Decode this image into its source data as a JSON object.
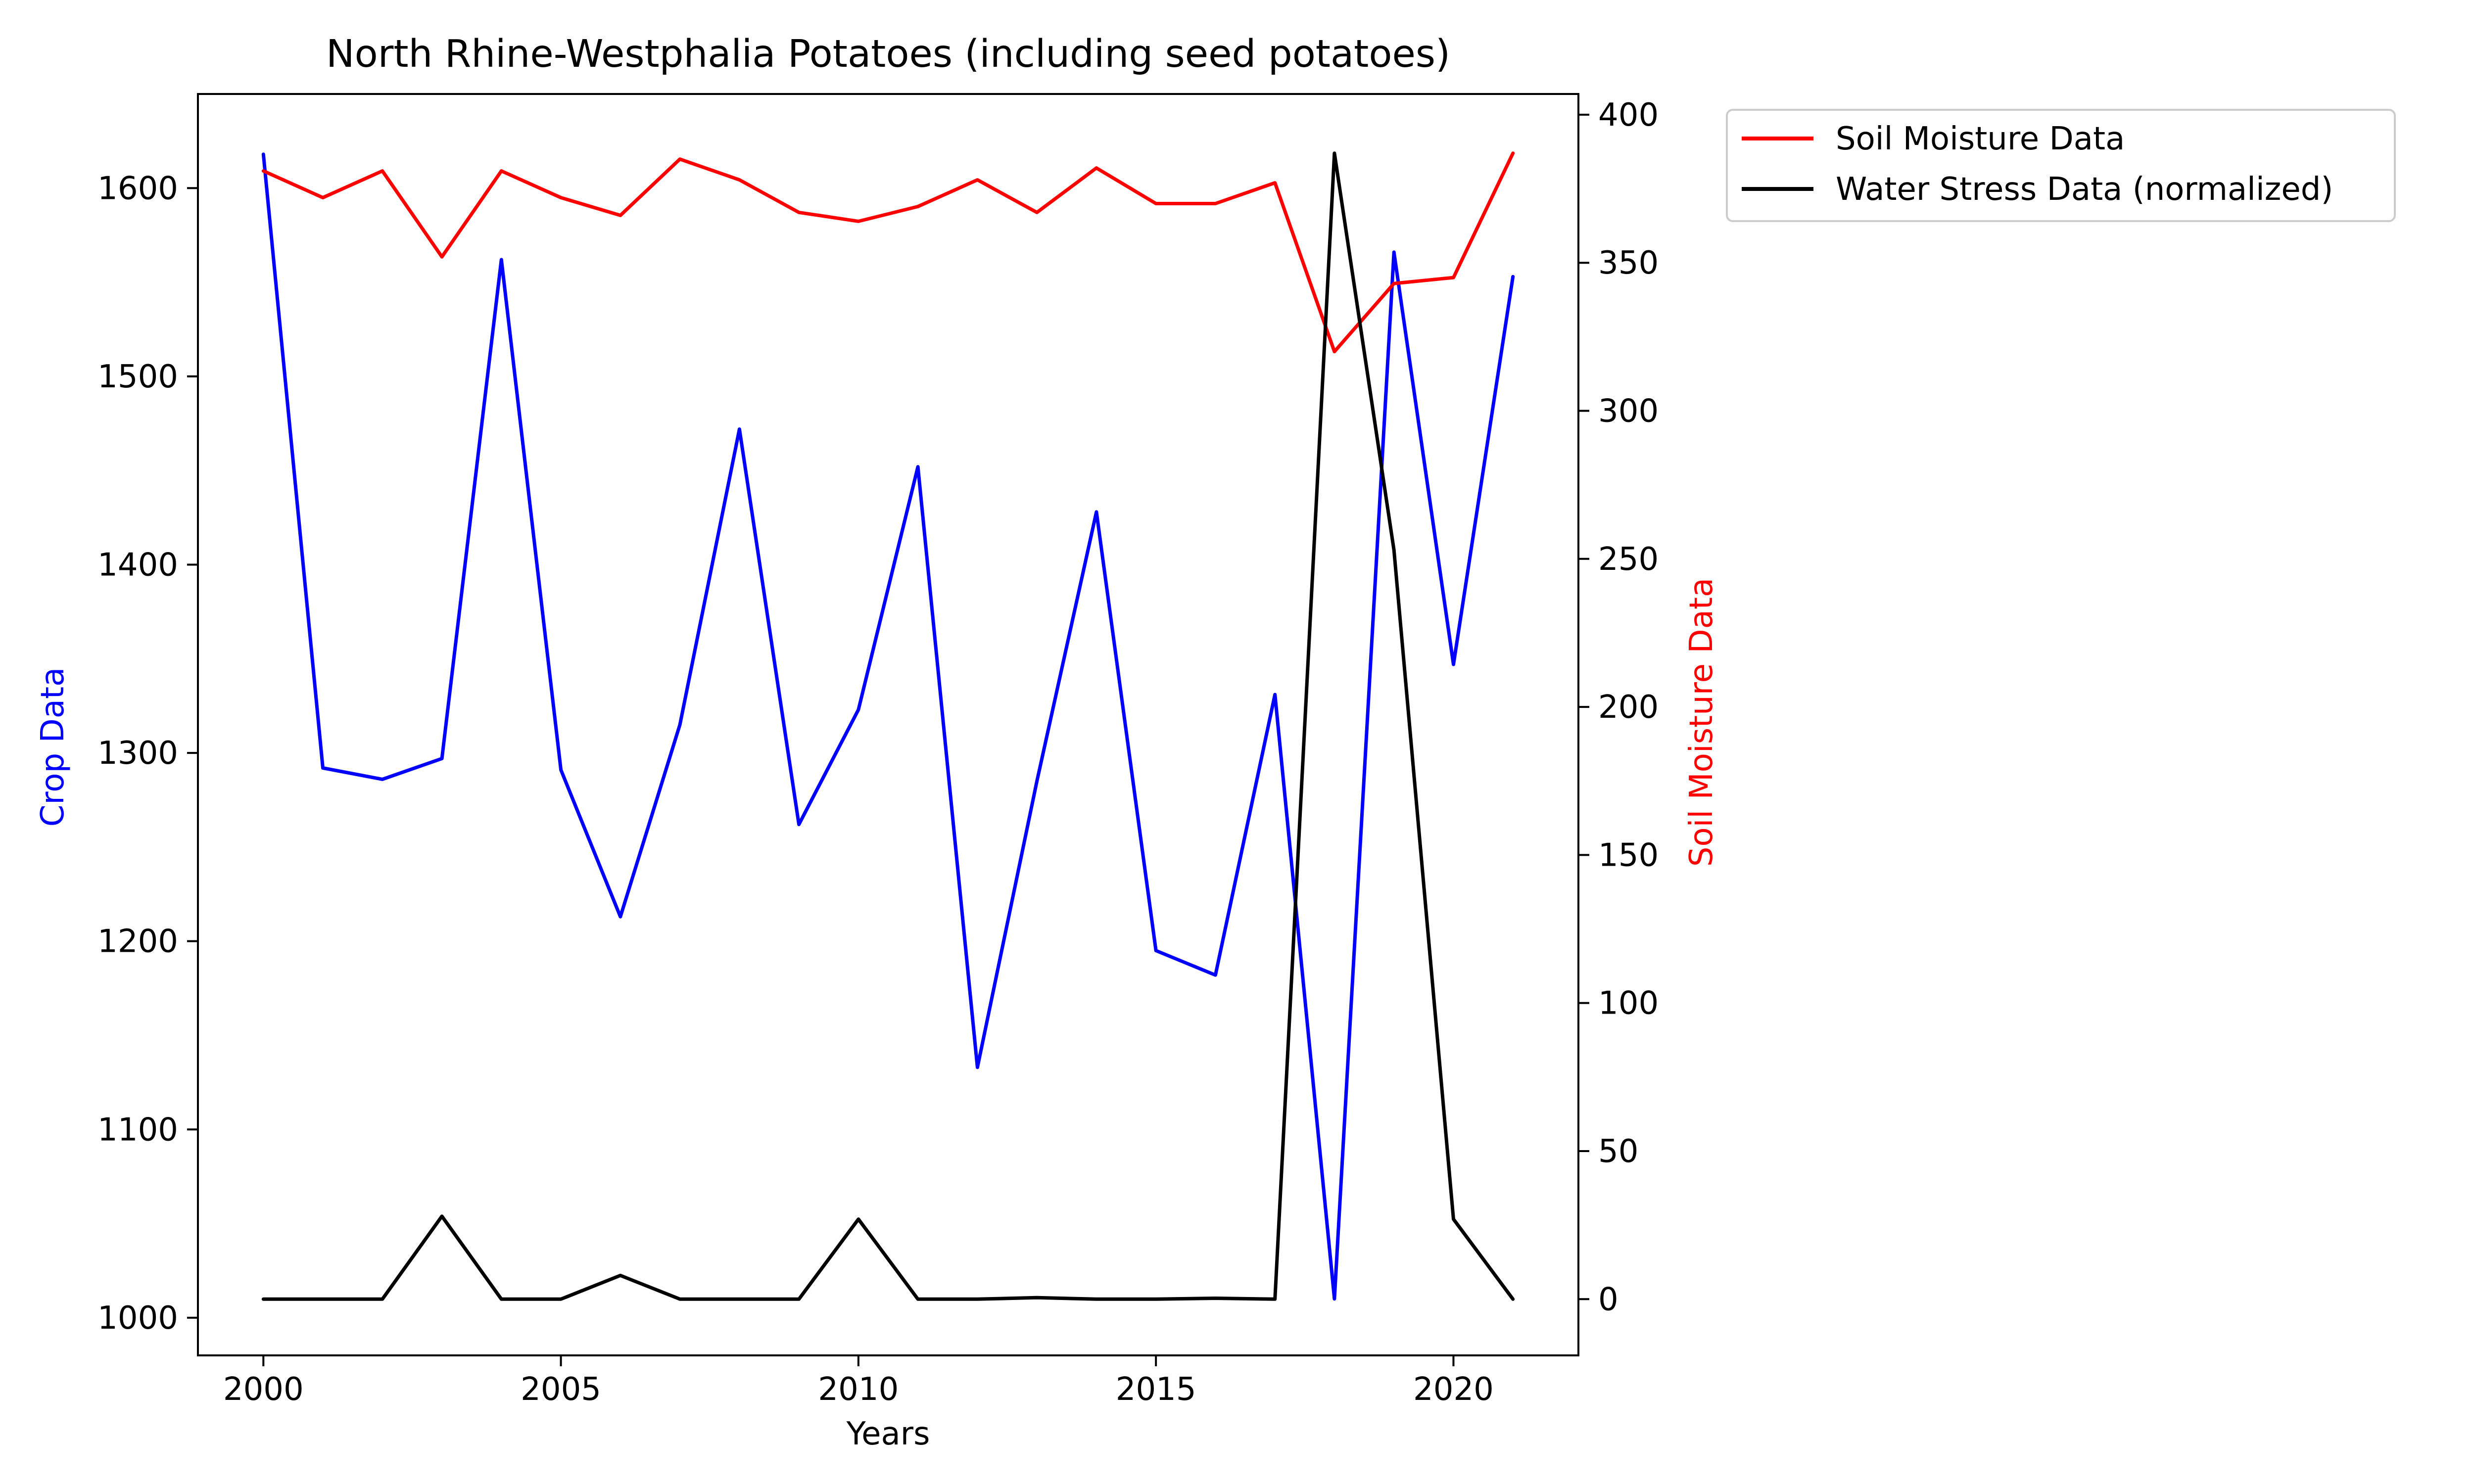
{
  "chart_data": {
    "type": "line",
    "title": "North Rhine-Westphalia Potatoes (including seed potatoes)",
    "xlabel": "Years",
    "ylabel_left": "Crop Data",
    "ylabel_right": "Soil Moisture Data",
    "xlim": [
      1998.9,
      2022.1
    ],
    "ylim_left": [
      980,
      1650
    ],
    "ylim_right": [
      -19,
      407
    ],
    "x_ticks": [
      2000,
      2005,
      2010,
      2015,
      2020
    ],
    "y_ticks_left": [
      1000,
      1100,
      1200,
      1300,
      1400,
      1500,
      1600
    ],
    "y_ticks_right": [
      0,
      50,
      100,
      150,
      200,
      250,
      300,
      350,
      400
    ],
    "grid": false,
    "legend_placement": "outside-top-right",
    "x": [
      2000,
      2001,
      2002,
      2003,
      2004,
      2005,
      2006,
      2007,
      2008,
      2009,
      2010,
      2011,
      2012,
      2013,
      2014,
      2015,
      2016,
      2017,
      2018,
      2019,
      2020,
      2021
    ],
    "series": [
      {
        "key": "crop",
        "axis": "left",
        "color": "#0000ff",
        "values": [
          1618,
          1292,
          1286,
          1297,
          1562,
          1291,
          1213,
          1315,
          1472,
          1262,
          1323,
          1452,
          1133,
          1285,
          1428,
          1195,
          1182,
          1331,
          1010,
          1566,
          1347,
          1553
        ]
      },
      {
        "key": "soil",
        "name": "Soil Moisture Data",
        "axis": "right",
        "color": "#ff0000",
        "values": [
          381,
          372,
          381,
          352,
          381,
          372,
          366,
          385,
          378,
          367,
          364,
          369,
          378,
          367,
          382,
          370,
          370,
          377,
          320,
          343,
          345,
          387
        ]
      },
      {
        "key": "stress",
        "name": "Water Stress Data (normalized)",
        "axis": "right",
        "color": "#000000",
        "values": [
          0,
          0,
          0,
          28,
          0,
          0,
          8,
          0,
          0,
          0,
          27,
          0,
          0,
          0.5,
          0,
          0,
          0.3,
          0,
          387,
          253,
          27,
          0
        ]
      }
    ]
  }
}
